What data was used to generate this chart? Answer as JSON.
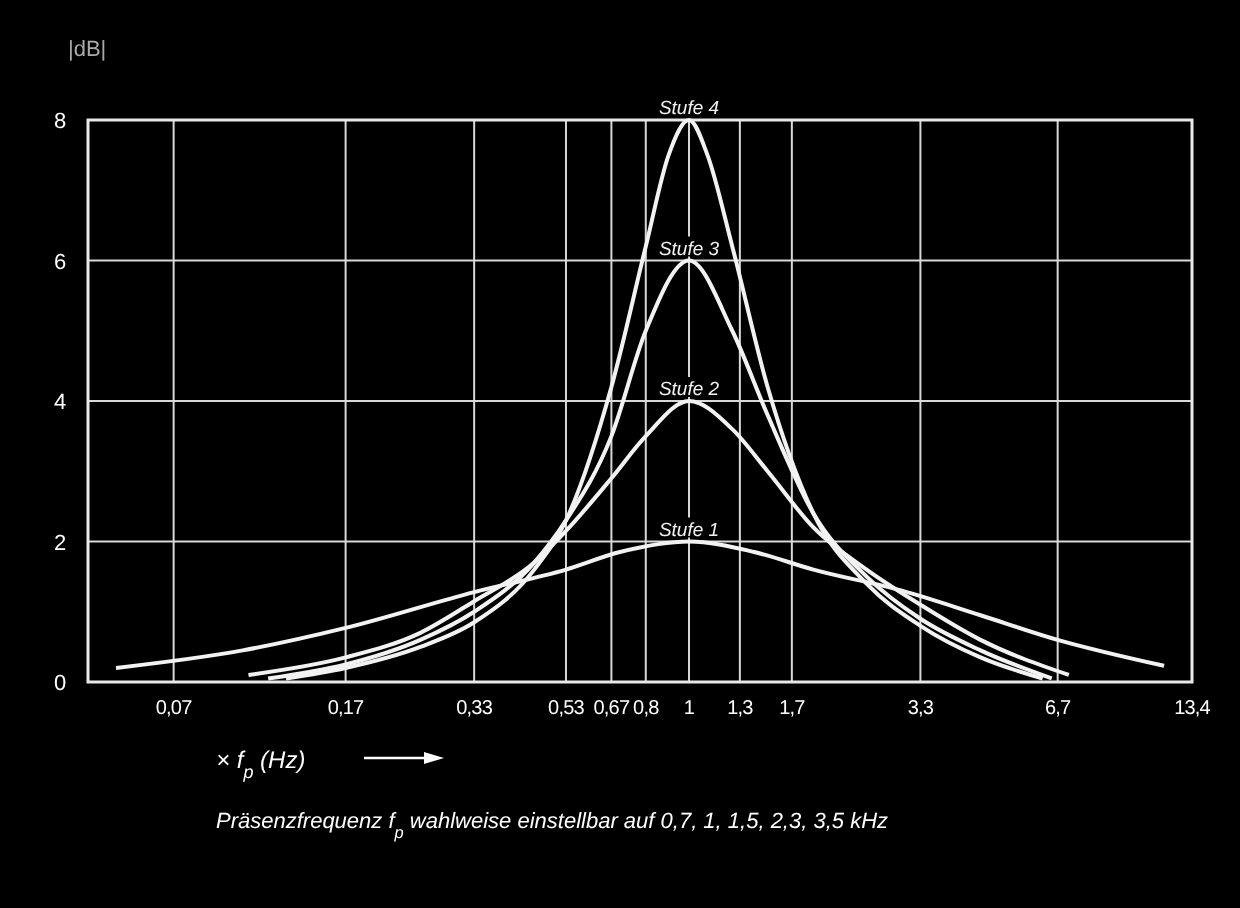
{
  "chart_data": {
    "type": "line",
    "ylabel": "|dB|",
    "xlabel": "× f$_{p}$ (Hz)",
    "log": "x",
    "grid": true,
    "marker": "none",
    "line_style": "solid",
    "xlim": [
      0.045,
      13.4
    ],
    "ylim": [
      0,
      8
    ],
    "xticks": [
      {
        "value": 0.07,
        "label": "0,07"
      },
      {
        "value": 0.17,
        "label": "0,17"
      },
      {
        "value": 0.33,
        "label": "0,33"
      },
      {
        "value": 0.53,
        "label": "0,53"
      },
      {
        "value": 0.67,
        "label": "0,67"
      },
      {
        "value": 0.8,
        "label": "0,8"
      },
      1,
      {
        "value": 1.3,
        "label": "1,3"
      },
      {
        "value": 1.7,
        "label": "1,7"
      },
      {
        "value": 3.3,
        "label": "3,3"
      },
      {
        "value": 6.7,
        "label": "6,7"
      },
      {
        "value": 13.4,
        "label": "13,4"
      }
    ],
    "yticks": [
      0,
      2,
      4,
      6,
      8
    ],
    "series": [
      {
        "name": "Stufe 1",
        "color": "#f2f2f2",
        "x": [
          0.052,
          0.1,
          0.17,
          0.33,
          0.53,
          0.7,
          1,
          1.4,
          1.9,
          3.0,
          4.5,
          6.7,
          11.6
        ],
        "values": [
          0.2,
          0.45,
          0.77,
          1.28,
          1.6,
          1.85,
          2.0,
          1.85,
          1.6,
          1.3,
          0.95,
          0.6,
          0.23
        ]
      },
      {
        "name": "Stufe 2",
        "color": "#f2f2f2",
        "x": [
          0.103,
          0.17,
          0.25,
          0.33,
          0.45,
          0.53,
          0.67,
          0.8,
          1,
          1.25,
          1.5,
          1.9,
          2.5,
          3.3,
          4.5,
          7.1
        ],
        "values": [
          0.1,
          0.35,
          0.7,
          1.15,
          1.7,
          2.15,
          2.9,
          3.5,
          4.0,
          3.6,
          3.0,
          2.2,
          1.6,
          1.1,
          0.6,
          0.1
        ]
      },
      {
        "name": "Stufe 3",
        "color": "#f2f2f2",
        "x": [
          0.114,
          0.17,
          0.25,
          0.33,
          0.45,
          0.53,
          0.67,
          0.8,
          1,
          1.25,
          1.5,
          1.9,
          2.5,
          3.3,
          4.5,
          6.5
        ],
        "values": [
          0.05,
          0.25,
          0.6,
          1.0,
          1.7,
          2.3,
          3.5,
          5.0,
          6.0,
          5.0,
          3.8,
          2.4,
          1.5,
          0.9,
          0.45,
          0.05
        ]
      },
      {
        "name": "Stufe 4",
        "color": "#f2f2f2",
        "x": [
          0.125,
          0.17,
          0.25,
          0.33,
          0.45,
          0.53,
          0.67,
          0.8,
          0.9,
          1,
          1.1,
          1.25,
          1.5,
          1.9,
          2.5,
          3.3,
          4.5,
          6.2
        ],
        "values": [
          0.05,
          0.2,
          0.5,
          0.85,
          1.6,
          2.3,
          4.2,
          6.2,
          7.5,
          8.0,
          7.5,
          6.2,
          4.2,
          2.4,
          1.4,
          0.8,
          0.35,
          0.05
        ]
      }
    ],
    "annotations": [
      "Präsenzfrequenz f$_{p}$ wahlweise einstellbar auf 0,7, 1, 1,5, 2,3, 3,5 kHz"
    ]
  }
}
